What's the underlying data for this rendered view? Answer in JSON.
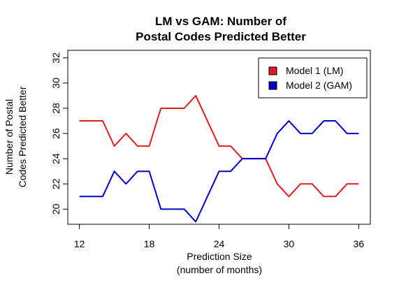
{
  "chart_data": {
    "type": "line",
    "title_lines": [
      "LM vs GAM: Number of",
      "Postal Codes Predicted Better"
    ],
    "xlabel_lines": [
      "Prediction Size",
      "(number of months)"
    ],
    "ylabel_lines": [
      "Number of Postal",
      "Codes Predicted Better"
    ],
    "xlim": [
      11,
      37
    ],
    "ylim": [
      18.8,
      32.6
    ],
    "x_ticks": [
      12,
      18,
      24,
      30,
      36
    ],
    "y_ticks": [
      20,
      22,
      24,
      26,
      28,
      30,
      32
    ],
    "x_tick_labels": [
      "12",
      "18",
      "24",
      "30",
      "36"
    ],
    "y_tick_labels": [
      "20",
      "22",
      "24",
      "26",
      "28",
      "30",
      "32"
    ],
    "legend_position": "top-right",
    "x": [
      12,
      13,
      14,
      15,
      16,
      17,
      18,
      19,
      20,
      21,
      22,
      23,
      24,
      25,
      26,
      27,
      28,
      29,
      30,
      31,
      32,
      33,
      34,
      35,
      36
    ],
    "series": [
      {
        "name": "Model 1 (LM)",
        "color": "#e41a1c",
        "values": [
          27,
          27,
          27,
          25,
          26,
          25,
          25,
          28,
          28,
          28,
          29,
          27,
          25,
          25,
          24,
          24,
          24,
          22,
          21,
          22,
          22,
          21,
          21,
          22,
          22
        ]
      },
      {
        "name": "Model 2 (GAM)",
        "color": "#0000cc",
        "values": [
          21,
          21,
          21,
          23,
          22,
          23,
          23,
          20,
          20,
          20,
          19,
          21,
          23,
          23,
          24,
          24,
          24,
          26,
          27,
          26,
          26,
          27,
          27,
          26,
          26
        ]
      }
    ]
  }
}
